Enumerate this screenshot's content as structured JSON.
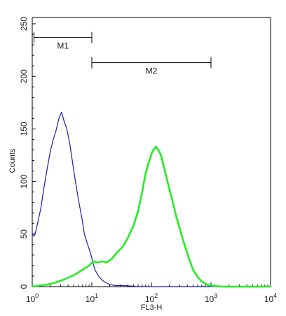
{
  "chart_data": {
    "type": "line",
    "xlabel": "FL3-H",
    "ylabel": "Counts",
    "x_scale": "log",
    "xlim": [
      1,
      10000
    ],
    "ylim": [
      0,
      256
    ],
    "x_ticks": [
      {
        "value": 1,
        "base": "10",
        "exp": "0"
      },
      {
        "value": 10,
        "base": "10",
        "exp": "1"
      },
      {
        "value": 100,
        "base": "10",
        "exp": "2"
      },
      {
        "value": 1000,
        "base": "10",
        "exp": "3"
      },
      {
        "value": 10000,
        "base": "10",
        "exp": "4"
      }
    ],
    "y_ticks": [
      0,
      50,
      100,
      150,
      200,
      250
    ],
    "grid": false,
    "series": [
      {
        "color": "#1c1ca8",
        "x": [
          1.0,
          1.07,
          1.15,
          1.25,
          1.4,
          1.55,
          1.75,
          2.0,
          2.25,
          2.5,
          2.8,
          3.1,
          3.4,
          3.8,
          4.2,
          4.7,
          5.3,
          6.0,
          6.8,
          7.5,
          8.5,
          9.5,
          10.5,
          11.5,
          13,
          15,
          17,
          20,
          25,
          35,
          60,
          100,
          1000,
          10000
        ],
        "y": [
          50,
          48,
          53,
          62,
          75,
          92,
          110,
          128,
          140,
          148,
          160,
          166,
          158,
          150,
          138,
          120,
          100,
          82,
          65,
          50,
          40,
          32,
          22,
          15,
          10,
          6,
          4,
          2,
          1,
          1,
          0,
          0,
          0,
          0
        ]
      },
      {
        "color": "#22ee22",
        "x": [
          1.0,
          1.3,
          1.8,
          2.5,
          3.5,
          5,
          7,
          9,
          10.5,
          12.5,
          15,
          18,
          22,
          27,
          33,
          40,
          50,
          60,
          70,
          80,
          90,
          100,
          110,
          120,
          130,
          145,
          165,
          190,
          220,
          260,
          300,
          350,
          420,
          500,
          600,
          700,
          850,
          1000,
          1500,
          3000,
          10000
        ],
        "y": [
          0,
          1,
          2,
          4,
          7,
          11,
          16,
          20,
          24,
          23,
          24,
          23,
          27,
          33,
          38,
          46,
          58,
          72,
          90,
          108,
          118,
          126,
          131,
          133,
          130,
          125,
          112,
          98,
          84,
          67,
          55,
          42,
          28,
          16,
          9,
          5,
          2,
          1,
          0,
          0,
          0
        ]
      }
    ],
    "markers": [
      {
        "label": "M1",
        "x_start": 1.07,
        "x_end": 10,
        "y": 237
      },
      {
        "label": "M2",
        "x_start": 10,
        "x_end": 1000,
        "y": 213
      }
    ]
  }
}
